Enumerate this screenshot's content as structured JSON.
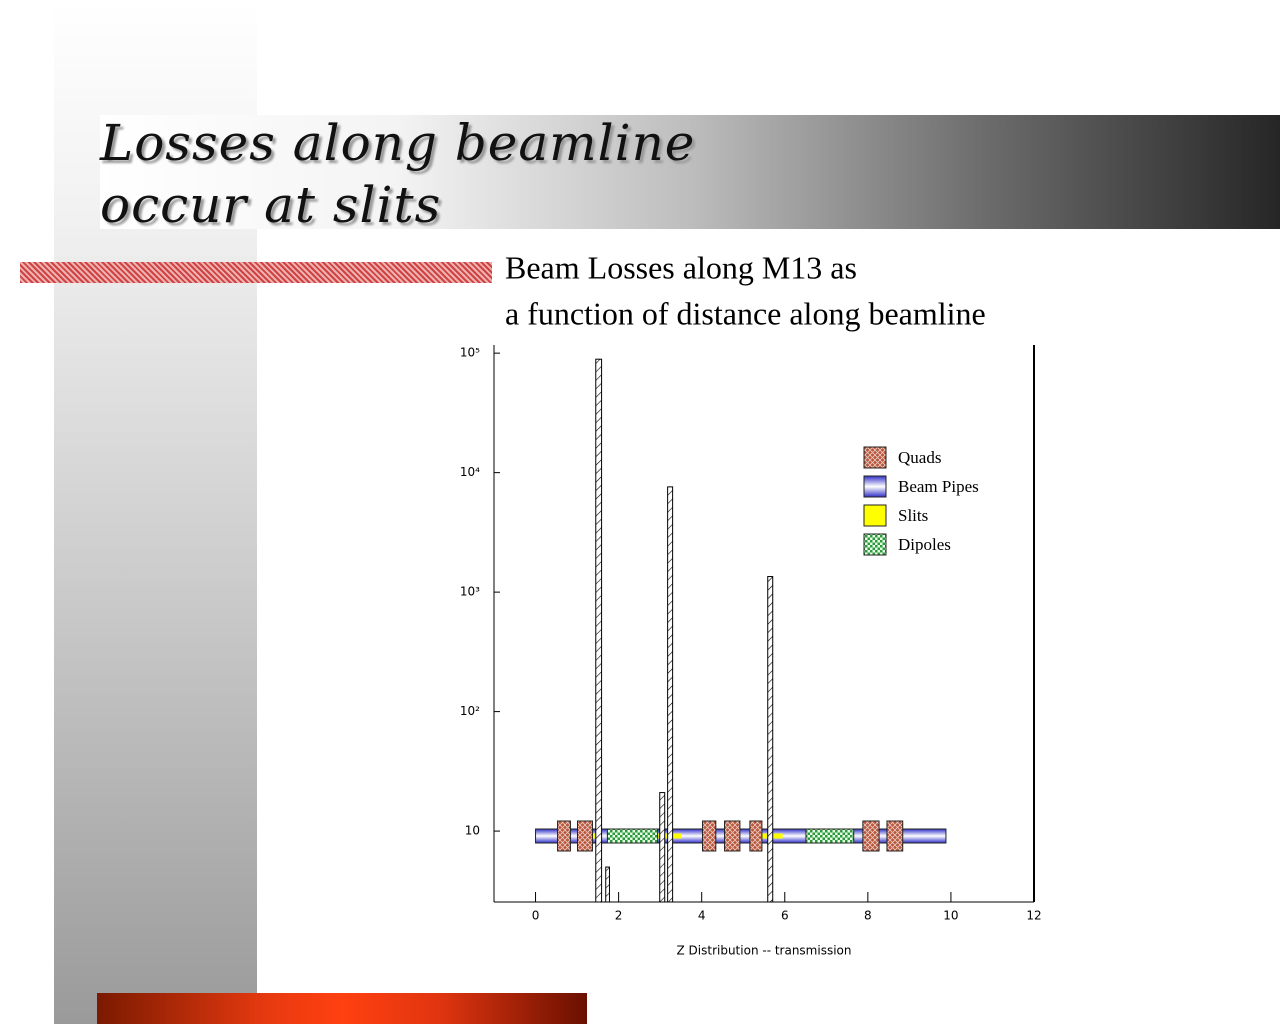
{
  "slide": {
    "title": [
      "Losses along beamline",
      "occur at slits"
    ]
  },
  "chart_data": {
    "type": "histogram",
    "title": [
      "Beam Losses along M13 as",
      "a function of distance along beamline"
    ],
    "x_label": "Z Distribution -- transmission",
    "bins": [
      1.45,
      1.59,
      1.69,
      1.78,
      2.99,
      3.11,
      3.18,
      3.3,
      5.59,
      5.71
    ],
    "counts": [
      89000,
      null,
      5,
      null,
      21,
      null,
      7600,
      null,
      1350
    ],
    "xlim": [
      -1,
      12
    ],
    "xticks": [
      0,
      2,
      4,
      6,
      8,
      10,
      12
    ],
    "ylim": [
      2.55,
      117000
    ],
    "log_y": true,
    "yticks": [
      10,
      {
        "value": 100,
        "label": "10²"
      },
      {
        "value": 1000,
        "label": "10³"
      },
      {
        "value": 10000,
        "label": "10⁴"
      },
      {
        "value": 100000,
        "label": "10⁵"
      }
    ],
    "elements": [
      {
        "name": "Quads",
        "color": "#b8553a",
        "segments": [
          [
            0.53,
            0.84
          ],
          [
            1.01,
            1.37
          ],
          [
            4.02,
            4.34
          ],
          [
            4.55,
            4.92
          ],
          [
            5.16,
            5.45
          ],
          [
            7.88,
            8.27
          ],
          [
            8.46,
            8.84
          ]
        ]
      },
      {
        "name": "Beam Pipes",
        "color": "#3030c8",
        "segments": [
          [
            0,
            9.88
          ]
        ]
      },
      {
        "name": "Slits",
        "color": "#ffff00",
        "segments": [
          [
            1.37,
            1.45
          ],
          [
            2.92,
            3.52
          ],
          [
            5.45,
            5.95
          ]
        ]
      },
      {
        "name": "Dipoles",
        "color": "#2e9a3e",
        "segments": [
          [
            1.73,
            2.94
          ],
          [
            6.51,
            7.66
          ]
        ]
      }
    ]
  }
}
